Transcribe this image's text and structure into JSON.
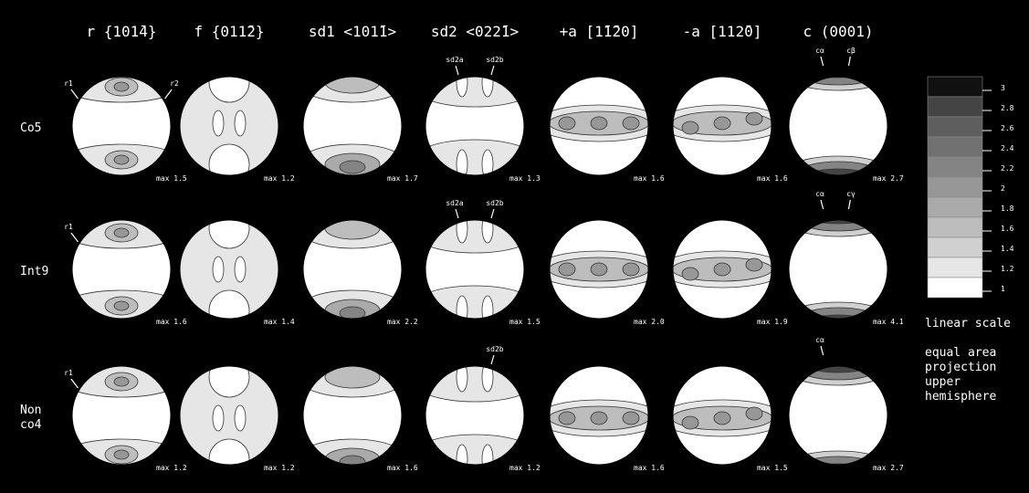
{
  "columns": [
    "r  {101̄4}",
    "f  {011̄2}",
    "sd1  <101̄1>",
    "sd2  <022̄1>",
    "+a  [1̄1̄20]",
    "-a  [112̄0]",
    "c  (0001)"
  ],
  "rows": [
    {
      "label": [
        "Co5"
      ],
      "panels": [
        {
          "max": "max 1.5",
          "labels": [
            "r1",
            "r2"
          ]
        },
        {
          "max": "max 1.2",
          "labels": []
        },
        {
          "max": "max 1.7",
          "labels": []
        },
        {
          "max": "max 1.3",
          "labels": [
            "sd2a",
            "sd2b"
          ]
        },
        {
          "max": "max 1.6",
          "labels": []
        },
        {
          "max": "max 1.6",
          "labels": []
        },
        {
          "max": "max 2.7",
          "labels": [
            "cα",
            "cβ"
          ]
        }
      ]
    },
    {
      "label": [
        "Int9"
      ],
      "panels": [
        {
          "max": "max 1.6",
          "labels": [
            "r1"
          ]
        },
        {
          "max": "max 1.4",
          "labels": []
        },
        {
          "max": "max 2.2",
          "labels": []
        },
        {
          "max": "max 1.5",
          "labels": [
            "sd2a",
            "sd2b"
          ]
        },
        {
          "max": "max 2.0",
          "labels": []
        },
        {
          "max": "max 1.9",
          "labels": []
        },
        {
          "max": "max 4.1",
          "labels": [
            "cα",
            "cγ"
          ]
        }
      ]
    },
    {
      "label": [
        "Non",
        "co4"
      ],
      "panels": [
        {
          "max": "max 1.2",
          "labels": [
            "r1"
          ]
        },
        {
          "max": "max 1.2",
          "labels": []
        },
        {
          "max": "max 1.6",
          "labels": []
        },
        {
          "max": "max 1.2",
          "labels": [
            null,
            "sd2b"
          ]
        },
        {
          "max": "max 1.6",
          "labels": []
        },
        {
          "max": "max 1.5",
          "labels": []
        },
        {
          "max": "max 2.7",
          "labels": [
            "cα"
          ]
        }
      ]
    }
  ],
  "legend": {
    "ticks": [
      3,
      2.8,
      2.6,
      2.4,
      2.2,
      2,
      1.8,
      1.6,
      1.4,
      1.2,
      1
    ],
    "scale": "linear scale",
    "notes": [
      "equal area",
      "projection",
      "upper",
      "hemisphere"
    ]
  }
}
